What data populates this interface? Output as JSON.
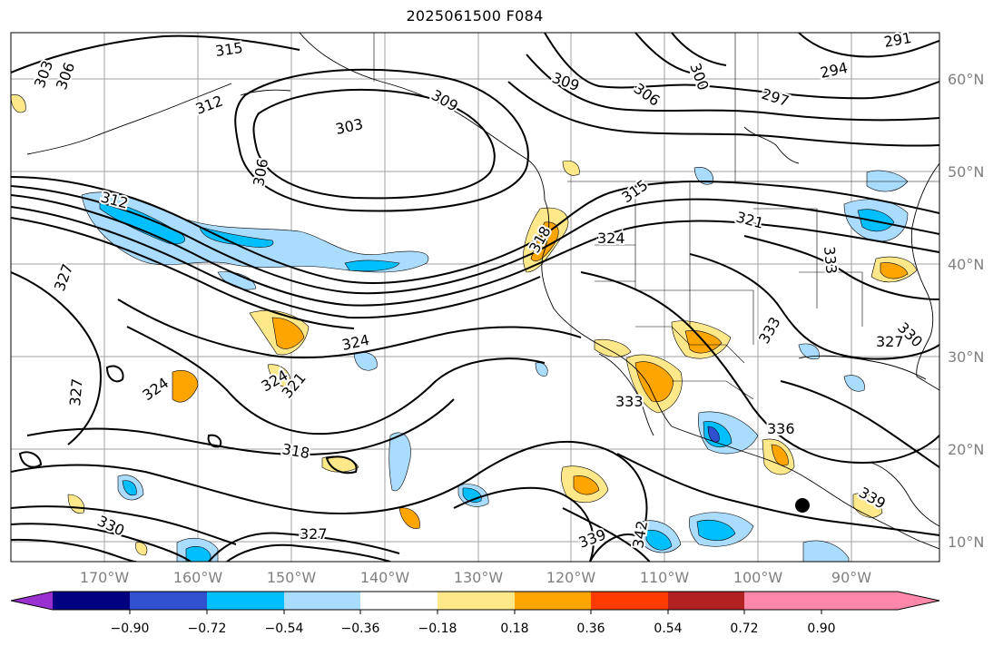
{
  "title": "2025061500 F084",
  "lon_labels": [
    "170°W",
    "160°W",
    "150°W",
    "140°W",
    "130°W",
    "120°W",
    "110°W",
    "100°W",
    "90°W"
  ],
  "lat_labels": [
    "60°N",
    "50°N",
    "40°N",
    "30°N",
    "20°N",
    "10°N"
  ],
  "contour_labels": [
    "315",
    "303",
    "306",
    "312",
    "309",
    "303",
    "306",
    "306",
    "300",
    "309",
    "291",
    "294",
    "297",
    "312",
    "315",
    "318",
    "324",
    "321",
    "333",
    "327",
    "324",
    "327",
    "324",
    "324",
    "321",
    "318",
    "327",
    "330",
    "333",
    "336",
    "330",
    "327",
    "339",
    "342",
    "339",
    "333"
  ],
  "colorbar": {
    "ticks": [
      "−0.90",
      "−0.72",
      "−0.54",
      "−0.36",
      "−0.18",
      "0.18",
      "0.36",
      "0.54",
      "0.72",
      "0.90"
    ],
    "colors": [
      "#9b30d0",
      "#000080",
      "#3050d0",
      "#00bfff",
      "#aadcff",
      "#ffffff",
      "#ffe88a",
      "#ffa500",
      "#ff3b00",
      "#b22222",
      "#ff88aa"
    ]
  },
  "marker": "filled-circle"
}
